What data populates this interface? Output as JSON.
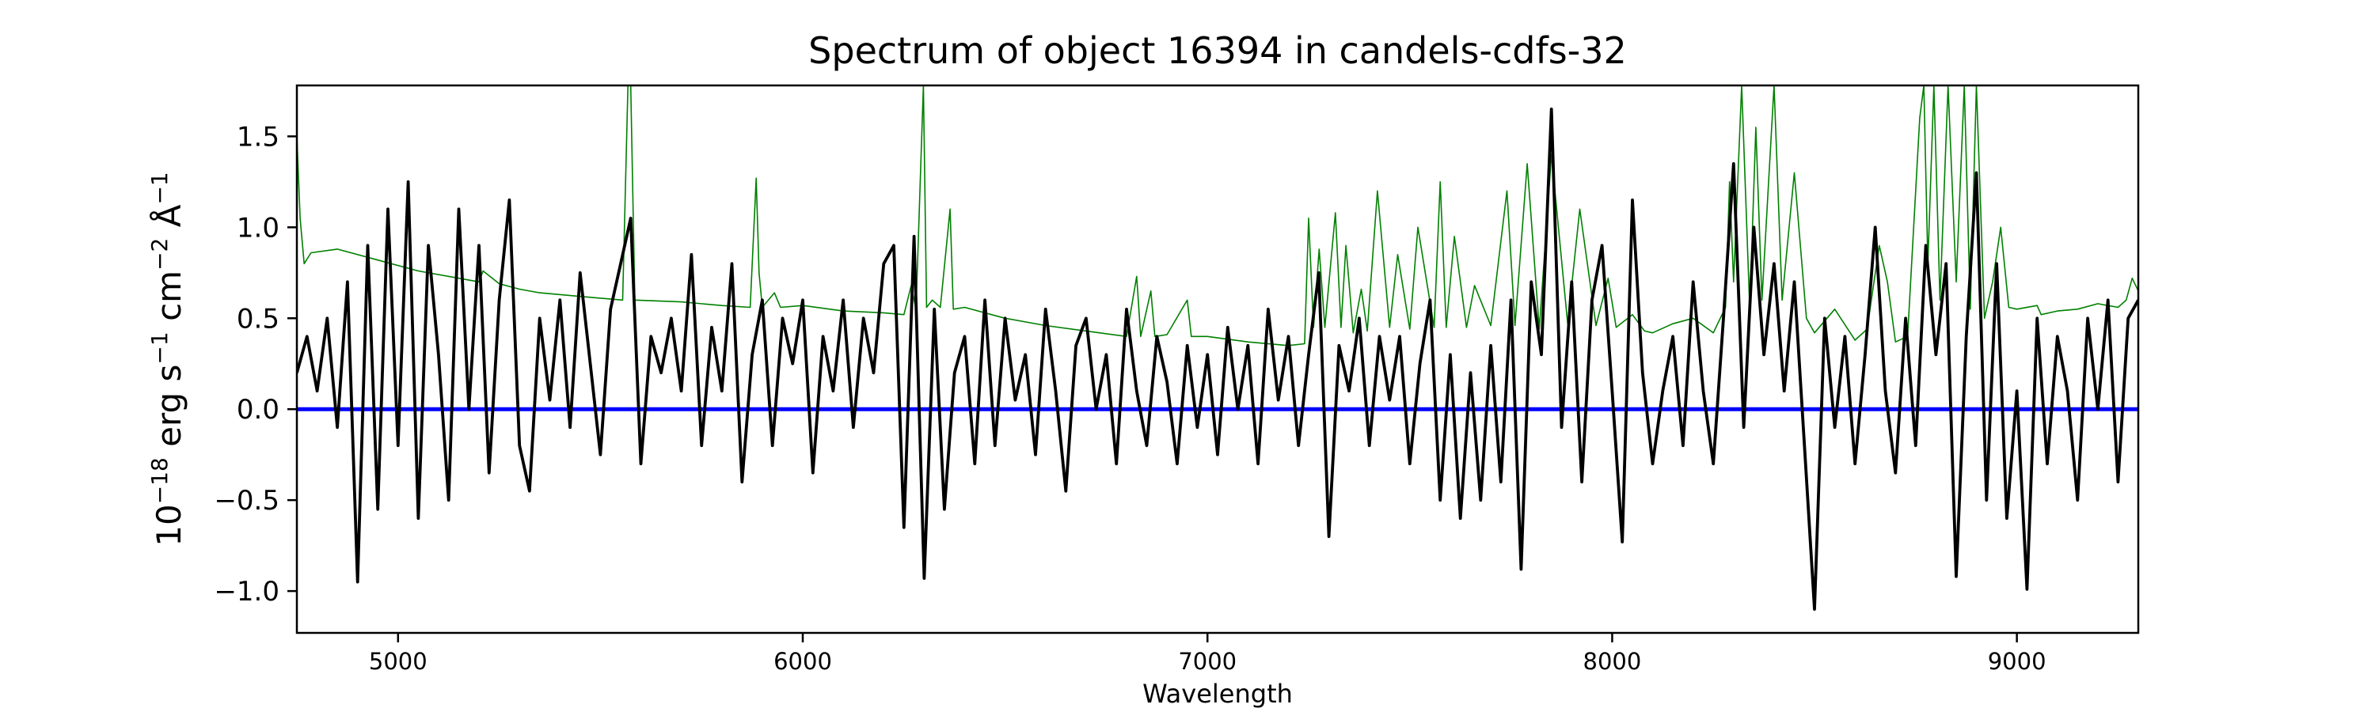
{
  "chart_data": {
    "type": "line",
    "title": "Spectrum of object 16394 in candels-cdfs-32",
    "xlabel": "Wavelength",
    "ylabel": {
      "base": "10",
      "exp1": "−18",
      "t1": " erg s",
      "exp2": "−1",
      "t2": " cm",
      "exp3": "−2",
      "t3": " Å",
      "exp4": "−1"
    },
    "xlim": [
      4750,
      9300
    ],
    "ylim": [
      -1.23,
      1.78
    ],
    "xticks": [
      5000,
      6000,
      7000,
      8000,
      9000
    ],
    "xtick_labels": [
      "5000",
      "6000",
      "7000",
      "8000",
      "9000"
    ],
    "yticks": [
      -1.0,
      -0.5,
      0.0,
      0.5,
      1.0,
      1.5
    ],
    "ytick_labels": [
      "−1.0",
      "−0.5",
      "0.0",
      "0.5",
      "1.0",
      "1.5"
    ],
    "grid": false,
    "series": [
      {
        "color": "#008000",
        "x": [
          4750,
          4758,
          4768,
          4785,
          4850,
          4950,
          5050,
          5150,
          5200,
          5210,
          5250,
          5300,
          5350,
          5450,
          5555,
          5568,
          5575,
          5585,
          5700,
          5800,
          5870,
          5885,
          5892,
          5900,
          5930,
          5945,
          6000,
          6100,
          6200,
          6250,
          6268,
          6280,
          6298,
          6306,
          6320,
          6340,
          6364,
          6372,
          6400,
          6500,
          6600,
          6700,
          6800,
          6825,
          6835,
          6860,
          6870,
          6900,
          6950,
          6960,
          7000,
          7100,
          7200,
          7240,
          7250,
          7262,
          7276,
          7290,
          7316,
          7330,
          7342,
          7360,
          7380,
          7395,
          7420,
          7450,
          7470,
          7500,
          7520,
          7560,
          7575,
          7590,
          7610,
          7640,
          7660,
          7700,
          7740,
          7760,
          7790,
          7820,
          7850,
          7890,
          7920,
          7960,
          7990,
          8010,
          8050,
          8080,
          8100,
          8150,
          8200,
          8250,
          8280,
          8290,
          8300,
          8320,
          8340,
          8355,
          8370,
          8400,
          8420,
          8450,
          8480,
          8500,
          8550,
          8600,
          8630,
          8660,
          8680,
          8700,
          8730,
          8760,
          8770,
          8780,
          8795,
          8810,
          8830,
          8850,
          8870,
          8885,
          8900,
          8920,
          8940,
          8960,
          8980,
          9000,
          9050,
          9060,
          9100,
          9150,
          9200,
          9250,
          9270,
          9285,
          9300
        ],
        "y": [
          1.5,
          1.05,
          0.8,
          0.86,
          0.88,
          0.82,
          0.76,
          0.72,
          0.7,
          0.76,
          0.69,
          0.66,
          0.64,
          0.62,
          0.6,
          1.78,
          1.78,
          0.6,
          0.59,
          0.57,
          0.56,
          1.27,
          0.75,
          0.56,
          0.64,
          0.56,
          0.57,
          0.54,
          0.53,
          0.52,
          0.68,
          0.55,
          1.78,
          0.56,
          0.6,
          0.56,
          1.1,
          0.55,
          0.56,
          0.5,
          0.46,
          0.43,
          0.4,
          0.73,
          0.4,
          0.65,
          0.4,
          0.41,
          0.6,
          0.4,
          0.4,
          0.37,
          0.35,
          0.36,
          1.05,
          0.45,
          0.88,
          0.45,
          1.08,
          0.45,
          0.9,
          0.42,
          0.66,
          0.43,
          1.2,
          0.45,
          0.85,
          0.44,
          1.0,
          0.45,
          1.25,
          0.45,
          0.95,
          0.45,
          0.68,
          0.46,
          1.2,
          0.46,
          1.35,
          0.44,
          1.4,
          0.47,
          1.1,
          0.46,
          0.72,
          0.45,
          0.52,
          0.43,
          0.42,
          0.47,
          0.5,
          0.42,
          0.56,
          1.25,
          0.7,
          1.78,
          0.55,
          1.55,
          0.6,
          1.78,
          0.6,
          1.3,
          0.5,
          0.42,
          0.55,
          0.38,
          0.44,
          0.9,
          0.7,
          0.37,
          0.4,
          1.6,
          1.78,
          0.8,
          1.78,
          0.6,
          1.78,
          0.7,
          1.78,
          0.55,
          1.78,
          0.5,
          0.7,
          1.0,
          0.56,
          0.55,
          0.57,
          0.52,
          0.54,
          0.55,
          0.58,
          0.56,
          0.6,
          0.72,
          0.65
        ]
      },
      {
        "color": "#000000",
        "x": [
          4750,
          4775,
          4800,
          4825,
          4850,
          4875,
          4900,
          4925,
          4950,
          4975,
          5000,
          5025,
          5050,
          5075,
          5100,
          5125,
          5150,
          5175,
          5200,
          5225,
          5250,
          5275,
          5300,
          5325,
          5350,
          5375,
          5400,
          5425,
          5450,
          5475,
          5500,
          5525,
          5550,
          5575,
          5600,
          5625,
          5650,
          5675,
          5700,
          5725,
          5750,
          5775,
          5800,
          5825,
          5850,
          5875,
          5900,
          5925,
          5950,
          5975,
          6000,
          6025,
          6050,
          6075,
          6100,
          6125,
          6150,
          6175,
          6200,
          6225,
          6250,
          6275,
          6300,
          6325,
          6350,
          6375,
          6400,
          6425,
          6450,
          6475,
          6500,
          6525,
          6550,
          6575,
          6600,
          6625,
          6650,
          6675,
          6700,
          6725,
          6750,
          6775,
          6800,
          6825,
          6850,
          6875,
          6900,
          6925,
          6950,
          6975,
          7000,
          7025,
          7050,
          7075,
          7100,
          7125,
          7150,
          7175,
          7200,
          7225,
          7250,
          7275,
          7300,
          7325,
          7350,
          7375,
          7400,
          7425,
          7450,
          7475,
          7500,
          7525,
          7550,
          7575,
          7600,
          7625,
          7650,
          7675,
          7700,
          7725,
          7750,
          7775,
          7800,
          7825,
          7850,
          7875,
          7900,
          7925,
          7950,
          7975,
          8000,
          8025,
          8050,
          8075,
          8100,
          8125,
          8150,
          8175,
          8200,
          8225,
          8250,
          8275,
          8300,
          8325,
          8350,
          8375,
          8400,
          8425,
          8450,
          8475,
          8500,
          8525,
          8550,
          8575,
          8600,
          8625,
          8650,
          8675,
          8700,
          8725,
          8750,
          8775,
          8800,
          8825,
          8850,
          8875,
          8900,
          8925,
          8950,
          8975,
          9000,
          9025,
          9050,
          9075,
          9100,
          9125,
          9150,
          9175,
          9200,
          9225,
          9250,
          9275,
          9300
        ],
        "y": [
          0.2,
          0.4,
          0.1,
          0.5,
          -0.1,
          0.7,
          -0.95,
          0.9,
          -0.55,
          1.1,
          -0.2,
          1.25,
          -0.6,
          0.9,
          0.3,
          -0.5,
          1.1,
          0.0,
          0.9,
          -0.35,
          0.6,
          1.15,
          -0.2,
          -0.45,
          0.5,
          0.05,
          0.6,
          -0.1,
          0.75,
          0.25,
          -0.25,
          0.55,
          0.8,
          1.05,
          -0.3,
          0.4,
          0.2,
          0.5,
          0.1,
          0.85,
          -0.2,
          0.45,
          0.1,
          0.8,
          -0.4,
          0.3,
          0.6,
          -0.2,
          0.5,
          0.25,
          0.6,
          -0.35,
          0.4,
          0.1,
          0.6,
          -0.1,
          0.5,
          0.2,
          0.8,
          0.9,
          -0.65,
          0.95,
          -0.93,
          0.55,
          -0.55,
          0.2,
          0.4,
          -0.3,
          0.6,
          -0.2,
          0.5,
          0.05,
          0.3,
          -0.25,
          0.55,
          0.1,
          -0.45,
          0.35,
          0.5,
          0.0,
          0.3,
          -0.3,
          0.55,
          0.1,
          -0.2,
          0.4,
          0.15,
          -0.3,
          0.35,
          -0.1,
          0.3,
          -0.25,
          0.45,
          0.0,
          0.35,
          -0.3,
          0.55,
          0.05,
          0.4,
          -0.2,
          0.3,
          0.75,
          -0.7,
          0.35,
          0.1,
          0.5,
          -0.2,
          0.4,
          0.05,
          0.4,
          -0.3,
          0.25,
          0.6,
          -0.5,
          0.3,
          -0.6,
          0.2,
          -0.5,
          0.35,
          -0.4,
          0.6,
          -0.88,
          0.7,
          0.3,
          1.65,
          -0.1,
          0.7,
          -0.4,
          0.6,
          0.9,
          0.1,
          -0.73,
          1.15,
          0.2,
          -0.3,
          0.1,
          0.4,
          -0.2,
          0.7,
          0.1,
          -0.3,
          0.5,
          1.35,
          -0.1,
          1.0,
          0.3,
          0.8,
          0.1,
          0.7,
          -0.2,
          -1.1,
          0.5,
          -0.1,
          0.4,
          -0.3,
          0.3,
          1.0,
          0.1,
          -0.35,
          0.5,
          -0.2,
          0.9,
          0.3,
          0.8,
          -0.92,
          0.4,
          1.3,
          -0.5,
          0.8,
          -0.6,
          0.1,
          -0.99,
          0.5,
          -0.3,
          0.4,
          0.1,
          -0.5,
          0.5,
          0.0,
          0.6,
          -0.4,
          0.5,
          0.6
        ]
      },
      {
        "color": "#0000ff",
        "x": [
          4750,
          9300
        ],
        "y": [
          0,
          0
        ]
      }
    ]
  }
}
